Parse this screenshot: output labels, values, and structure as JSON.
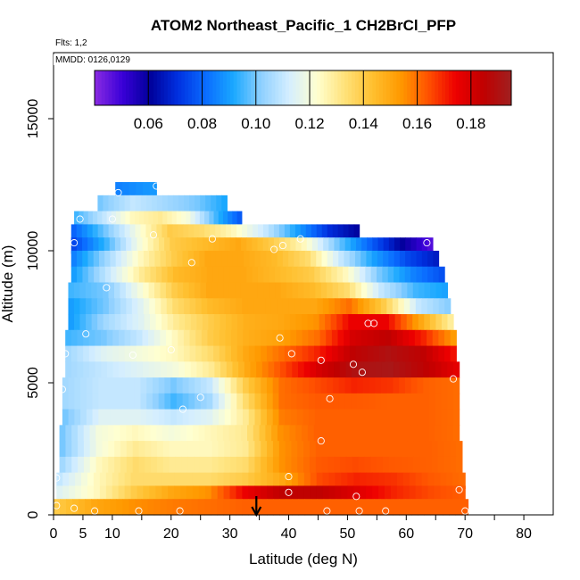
{
  "chart_data": {
    "type": "heatmap",
    "title": "ATOM2 Northeast_Pacific_1 CH2BrCl_PFP",
    "flights_label": "Flts: 1,2",
    "dates_label": "MMDD: 0126,0129",
    "xlabel": "Latitude (deg N)",
    "ylabel": "Altitude (m)",
    "xlim": [
      0,
      85
    ],
    "ylim": [
      0,
      17500
    ],
    "x_ticks": [
      0,
      5,
      10,
      20,
      30,
      40,
      50,
      60,
      70,
      80
    ],
    "y_ticks": [
      0,
      5000,
      10000,
      15000
    ],
    "colorbar": {
      "range": [
        0.04,
        0.195
      ],
      "ticks": [
        0.06,
        0.08,
        0.1,
        0.12,
        0.14,
        0.16,
        0.18
      ],
      "tick_labels": [
        "0.06",
        "0.08",
        "0.10",
        "0.12",
        "0.14",
        "0.16",
        "0.18"
      ],
      "colors": [
        "#8a2be2",
        "#3a00d8",
        "#00009a",
        "#0030e0",
        "#0a6cff",
        "#1aa8ff",
        "#8fd0ff",
        "#d4eeff",
        "#ffffd0",
        "#ffe27a",
        "#ffc030",
        "#ff9a00",
        "#ff5200",
        "#ee0000",
        "#c00000",
        "#a02020"
      ]
    },
    "marker_latitude": 34.5,
    "rows": [
      {
        "alt": 12300,
        "lat_min": 10.5,
        "lat_max": 17.5,
        "values": [
          0.085,
          0.09
        ]
      },
      {
        "alt": 11800,
        "lat_min": 7.5,
        "lat_max": 29.5,
        "values": [
          0.1,
          0.11,
          0.105,
          0.1,
          0.09
        ]
      },
      {
        "alt": 11200,
        "lat_min": 3.5,
        "lat_max": 32.0,
        "values": [
          0.095,
          0.11,
          0.125,
          0.13,
          0.12,
          0.095,
          0.075
        ]
      },
      {
        "alt": 10700,
        "lat_min": 3.0,
        "lat_max": 52.0,
        "values": [
          0.08,
          0.1,
          0.12,
          0.14,
          0.135,
          0.125,
          0.11,
          0.09,
          0.07,
          0.06
        ]
      },
      {
        "alt": 10200,
        "lat_min": 3.0,
        "lat_max": 64.5,
        "values": [
          0.075,
          0.095,
          0.12,
          0.14,
          0.145,
          0.15,
          0.14,
          0.125,
          0.1,
          0.08,
          0.06,
          0.045
        ]
      },
      {
        "alt": 9700,
        "lat_min": 3.0,
        "lat_max": 65.5,
        "values": [
          0.085,
          0.105,
          0.125,
          0.14,
          0.15,
          0.15,
          0.145,
          0.135,
          0.11,
          0.09,
          0.075,
          0.065
        ]
      },
      {
        "alt": 9100,
        "lat_min": 3.0,
        "lat_max": 66.5,
        "values": [
          0.09,
          0.11,
          0.13,
          0.145,
          0.15,
          0.15,
          0.145,
          0.14,
          0.125,
          0.1,
          0.085,
          0.075
        ]
      },
      {
        "alt": 8500,
        "lat_min": 2.5,
        "lat_max": 67.0,
        "values": [
          0.095,
          0.1,
          0.12,
          0.14,
          0.15,
          0.15,
          0.15,
          0.145,
          0.135,
          0.11,
          0.095,
          0.09
        ]
      },
      {
        "alt": 7900,
        "lat_min": 2.5,
        "lat_max": 67.5,
        "values": [
          0.09,
          0.1,
          0.115,
          0.135,
          0.145,
          0.15,
          0.15,
          0.15,
          0.16,
          0.14,
          0.11,
          0.1
        ]
      },
      {
        "alt": 7300,
        "lat_min": 2.5,
        "lat_max": 68.0,
        "values": [
          0.09,
          0.105,
          0.115,
          0.13,
          0.14,
          0.148,
          0.15,
          0.155,
          0.175,
          0.175,
          0.15,
          0.125
        ]
      },
      {
        "alt": 6700,
        "lat_min": 2.0,
        "lat_max": 68.5,
        "values": [
          0.095,
          0.1,
          0.11,
          0.125,
          0.14,
          0.148,
          0.152,
          0.16,
          0.18,
          0.185,
          0.17,
          0.15
        ]
      },
      {
        "alt": 6100,
        "lat_min": 2.0,
        "lat_max": 68.5,
        "values": [
          0.105,
          0.115,
          0.12,
          0.125,
          0.135,
          0.15,
          0.16,
          0.17,
          0.185,
          0.19,
          0.185,
          0.17
        ]
      },
      {
        "alt": 5500,
        "lat_min": 2.0,
        "lat_max": 69.0,
        "values": [
          0.105,
          0.11,
          0.115,
          0.12,
          0.13,
          0.15,
          0.165,
          0.18,
          0.19,
          0.192,
          0.185,
          0.175
        ]
      },
      {
        "alt": 4900,
        "lat_min": 1.5,
        "lat_max": 69.0,
        "values": [
          0.105,
          0.11,
          0.11,
          0.1,
          0.11,
          0.14,
          0.16,
          0.165,
          0.17,
          0.168,
          0.162,
          0.16
        ]
      },
      {
        "alt": 4300,
        "lat_min": 1.5,
        "lat_max": 69.0,
        "values": [
          0.105,
          0.11,
          0.11,
          0.095,
          0.105,
          0.135,
          0.16,
          0.163,
          0.163,
          0.162,
          0.162,
          0.16
        ]
      },
      {
        "alt": 3700,
        "lat_min": 1.5,
        "lat_max": 69.0,
        "values": [
          0.1,
          0.115,
          0.115,
          0.11,
          0.115,
          0.13,
          0.158,
          0.162,
          0.162,
          0.162,
          0.162,
          0.16
        ]
      },
      {
        "alt": 3100,
        "lat_min": 1.0,
        "lat_max": 69.0,
        "values": [
          0.1,
          0.12,
          0.125,
          0.12,
          0.125,
          0.13,
          0.155,
          0.162,
          0.162,
          0.162,
          0.162,
          0.16
        ]
      },
      {
        "alt": 2500,
        "lat_min": 1.0,
        "lat_max": 69.5,
        "values": [
          0.1,
          0.12,
          0.13,
          0.125,
          0.125,
          0.13,
          0.155,
          0.162,
          0.162,
          0.162,
          0.162,
          0.16
        ]
      },
      {
        "alt": 1900,
        "lat_min": 1.0,
        "lat_max": 69.5,
        "values": [
          0.105,
          0.125,
          0.135,
          0.13,
          0.13,
          0.135,
          0.155,
          0.163,
          0.165,
          0.163,
          0.162,
          0.16
        ]
      },
      {
        "alt": 1300,
        "lat_min": 0.5,
        "lat_max": 70.0,
        "values": [
          0.11,
          0.125,
          0.135,
          0.135,
          0.135,
          0.14,
          0.15,
          0.165,
          0.17,
          0.168,
          0.163,
          0.16
        ]
      },
      {
        "alt": 800,
        "lat_min": 0.5,
        "lat_max": 70.0,
        "values": [
          0.115,
          0.125,
          0.14,
          0.15,
          0.155,
          0.175,
          0.185,
          0.185,
          0.178,
          0.17,
          0.165,
          0.162
        ]
      },
      {
        "alt": 300,
        "lat_min": 0.0,
        "lat_max": 70.5,
        "values": [
          0.14,
          0.15,
          0.155,
          0.158,
          0.16,
          0.162,
          0.162,
          0.162,
          0.162,
          0.162,
          0.162,
          0.162
        ]
      }
    ],
    "samples": [
      {
        "lat": 17.5,
        "alt": 12450
      },
      {
        "lat": 11.0,
        "alt": 12200
      },
      {
        "lat": 4.5,
        "alt": 11200
      },
      {
        "lat": 10.0,
        "alt": 11200
      },
      {
        "lat": 3.5,
        "alt": 10300
      },
      {
        "lat": 17.0,
        "alt": 10600
      },
      {
        "lat": 27.0,
        "alt": 10450
      },
      {
        "lat": 37.5,
        "alt": 10050
      },
      {
        "lat": 39.0,
        "alt": 10200
      },
      {
        "lat": 42.0,
        "alt": 10450
      },
      {
        "lat": 63.5,
        "alt": 10300
      },
      {
        "lat": 23.5,
        "alt": 9550
      },
      {
        "lat": 9.0,
        "alt": 8600
      },
      {
        "lat": 53.5,
        "alt": 7250
      },
      {
        "lat": 54.5,
        "alt": 7250
      },
      {
        "lat": 5.5,
        "alt": 6850
      },
      {
        "lat": 38.5,
        "alt": 6700
      },
      {
        "lat": 2.0,
        "alt": 6100
      },
      {
        "lat": 13.5,
        "alt": 6050
      },
      {
        "lat": 20.0,
        "alt": 6250
      },
      {
        "lat": 40.5,
        "alt": 6100
      },
      {
        "lat": 45.5,
        "alt": 5850
      },
      {
        "lat": 51.0,
        "alt": 5700
      },
      {
        "lat": 52.5,
        "alt": 5400
      },
      {
        "lat": 68.0,
        "alt": 5150
      },
      {
        "lat": 1.5,
        "alt": 4750
      },
      {
        "lat": 25.0,
        "alt": 4450
      },
      {
        "lat": 22.0,
        "alt": 4000
      },
      {
        "lat": 47.0,
        "alt": 4400
      },
      {
        "lat": 45.5,
        "alt": 2800
      },
      {
        "lat": 0.5,
        "alt": 1400
      },
      {
        "lat": 40.0,
        "alt": 1450
      },
      {
        "lat": 40.0,
        "alt": 850
      },
      {
        "lat": 69.0,
        "alt": 950
      },
      {
        "lat": 51.5,
        "alt": 700
      },
      {
        "lat": 0.5,
        "alt": 350
      },
      {
        "lat": 3.5,
        "alt": 250
      },
      {
        "lat": 7.0,
        "alt": 150
      },
      {
        "lat": 14.5,
        "alt": 150
      },
      {
        "lat": 21.5,
        "alt": 150
      },
      {
        "lat": 46.5,
        "alt": 150
      },
      {
        "lat": 52.0,
        "alt": 150
      },
      {
        "lat": 56.5,
        "alt": 150
      },
      {
        "lat": 70.0,
        "alt": 150
      }
    ]
  }
}
